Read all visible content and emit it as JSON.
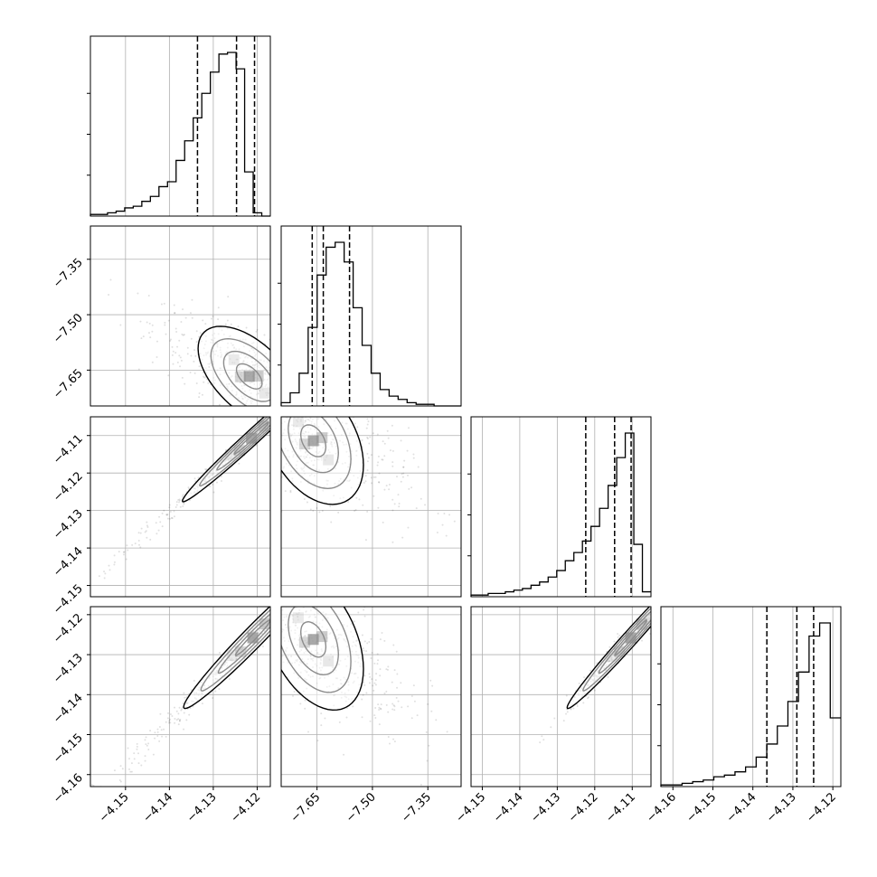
{
  "chart_data": {
    "type": "corner",
    "title": "",
    "grid": true,
    "parameters": [
      {
        "label": "",
        "range": [
          -4.158,
          -4.117
        ],
        "ticks": [
          -4.15,
          -4.14,
          -4.13,
          -4.12
        ],
        "tick_labels": [
          "−4.15",
          "−4.14",
          "−4.13",
          "−4.12"
        ],
        "quantiles": [
          -4.1336,
          -4.1247,
          -4.1206
        ]
      },
      {
        "label": "",
        "range": [
          -7.747,
          -7.26
        ],
        "ticks": [
          -7.65,
          -7.5,
          -7.35
        ],
        "tick_labels": [
          "−7.65",
          "−7.50",
          "−7.35"
        ],
        "quantiles": [
          -7.663,
          -7.633,
          -7.562
        ]
      },
      {
        "label": "",
        "range": [
          -4.153,
          -4.105
        ],
        "ticks": [
          -4.15,
          -4.14,
          -4.13,
          -4.12,
          -4.11
        ],
        "tick_labels": [
          "−4.15",
          "−4.14",
          "−4.13",
          "−4.12",
          "−4.11"
        ],
        "quantiles": [
          -4.1224,
          -4.1147,
          -4.1103
        ]
      },
      {
        "label": "",
        "range": [
          -4.163,
          -4.118
        ],
        "ticks": [
          -4.16,
          -4.15,
          -4.14,
          -4.13,
          -4.12
        ],
        "tick_labels": [
          "−4.16",
          "−4.15",
          "−4.14",
          "−4.13",
          "−4.12"
        ],
        "quantiles": [
          -4.1365,
          -4.129,
          -4.1248
        ]
      }
    ],
    "histograms": [
      [
        0.01,
        0.01,
        0.02,
        0.03,
        0.05,
        0.06,
        0.09,
        0.12,
        0.18,
        0.21,
        0.34,
        0.46,
        0.6,
        0.75,
        0.88,
        0.99,
        1.0,
        0.9,
        0.27,
        0.02,
        0.0
      ],
      [
        0.02,
        0.08,
        0.2,
        0.48,
        0.8,
        0.97,
        1.0,
        0.88,
        0.6,
        0.37,
        0.2,
        0.1,
        0.06,
        0.04,
        0.02,
        0.01,
        0.01,
        0.0,
        0.0,
        0.0
      ],
      [
        0.01,
        0.01,
        0.02,
        0.02,
        0.03,
        0.04,
        0.05,
        0.07,
        0.09,
        0.12,
        0.16,
        0.22,
        0.27,
        0.34,
        0.43,
        0.54,
        0.68,
        0.85,
        1.0,
        0.32,
        0.03
      ],
      [
        0.01,
        0.01,
        0.02,
        0.03,
        0.04,
        0.06,
        0.07,
        0.09,
        0.12,
        0.18,
        0.26,
        0.37,
        0.52,
        0.7,
        0.92,
        1.0,
        0.42
      ]
    ],
    "pairs": [
      {
        "row": 1,
        "col": 0,
        "center": [
          -4.1218,
          -7.667
        ],
        "cov": [
          [
            3.4e-05,
            -0.00022
          ],
          [
            -0.00022,
            0.0046
          ]
        ]
      },
      {
        "row": 2,
        "col": 0,
        "center": [
          -4.1213,
          -4.1107
        ],
        "cov": [
          [
            6.2e-05,
            6.6e-05
          ],
          [
            6.6e-05,
            7.2e-05
          ]
        ]
      },
      {
        "row": 2,
        "col": 1,
        "center": [
          -7.66,
          -4.1114
        ],
        "cov": [
          [
            0.0046,
            -0.00022
          ],
          [
            -0.00022,
            7.2e-05
          ]
        ]
      },
      {
        "row": 3,
        "col": 0,
        "center": [
          -4.121,
          -4.1258
        ],
        "cov": [
          [
            6.2e-05,
            6.8e-05
          ],
          [
            6.8e-05,
            7.8e-05
          ]
        ]
      },
      {
        "row": 3,
        "col": 1,
        "center": [
          -7.66,
          -4.1262
        ],
        "cov": [
          [
            0.0046,
            -0.00025
          ],
          [
            -0.00025,
            7.8e-05
          ]
        ]
      },
      {
        "row": 3,
        "col": 2,
        "center": [
          -4.1104,
          -4.1258
        ],
        "cov": [
          [
            7.2e-05,
            7.4e-05
          ],
          [
            7.4e-05,
            7.8e-05
          ]
        ]
      }
    ],
    "contour_levels_sigma": [
      0.5,
      1.0,
      1.5,
      2.0
    ]
  }
}
